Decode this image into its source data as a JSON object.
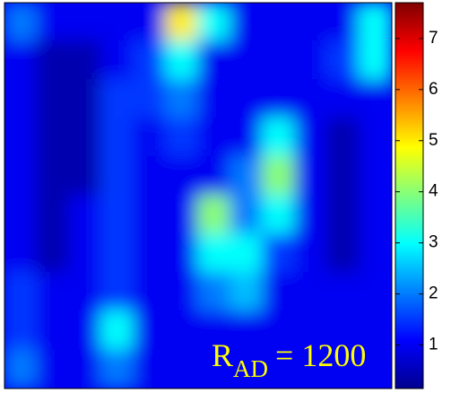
{
  "chart_data": {
    "type": "heatmap",
    "z": [
      [
        2,
        1,
        1,
        1,
        1,
        5,
        3,
        1,
        1,
        1,
        1,
        3
      ],
      [
        1,
        0.5,
        0.5,
        1,
        1.5,
        3,
        1,
        1,
        1,
        1,
        1.5,
        3
      ],
      [
        1,
        0.5,
        0.5,
        1.5,
        1.5,
        2,
        1,
        1,
        1,
        1,
        1,
        1
      ],
      [
        1,
        0.5,
        0.5,
        1.5,
        1,
        1.5,
        1,
        1,
        3,
        1,
        0.5,
        1
      ],
      [
        1,
        0.5,
        0.5,
        1.5,
        1,
        1,
        1,
        2,
        4,
        1,
        0.5,
        1
      ],
      [
        1,
        0.5,
        1,
        1.5,
        1,
        1,
        4,
        2,
        3,
        1,
        0.5,
        1
      ],
      [
        1,
        0.5,
        1,
        1.5,
        1,
        1,
        3,
        3,
        1.5,
        1,
        0.5,
        1
      ],
      [
        1.5,
        1,
        1,
        1.5,
        1,
        1,
        2,
        2.5,
        1,
        1,
        1,
        1
      ],
      [
        1.5,
        1,
        1,
        3,
        1,
        1,
        1,
        1,
        1,
        1,
        1,
        1
      ],
      [
        2,
        1,
        1,
        2,
        1,
        1,
        1,
        1,
        1,
        1,
        1,
        1
      ]
    ],
    "clim": [
      0.15,
      7.7
    ],
    "cticks": [
      1,
      2,
      3,
      4,
      5,
      6,
      7
    ],
    "colormap": "jet",
    "annotation": {
      "symbol": "R",
      "subscript": "AD",
      "rest": "= 1200",
      "color": "#ffff00"
    }
  }
}
